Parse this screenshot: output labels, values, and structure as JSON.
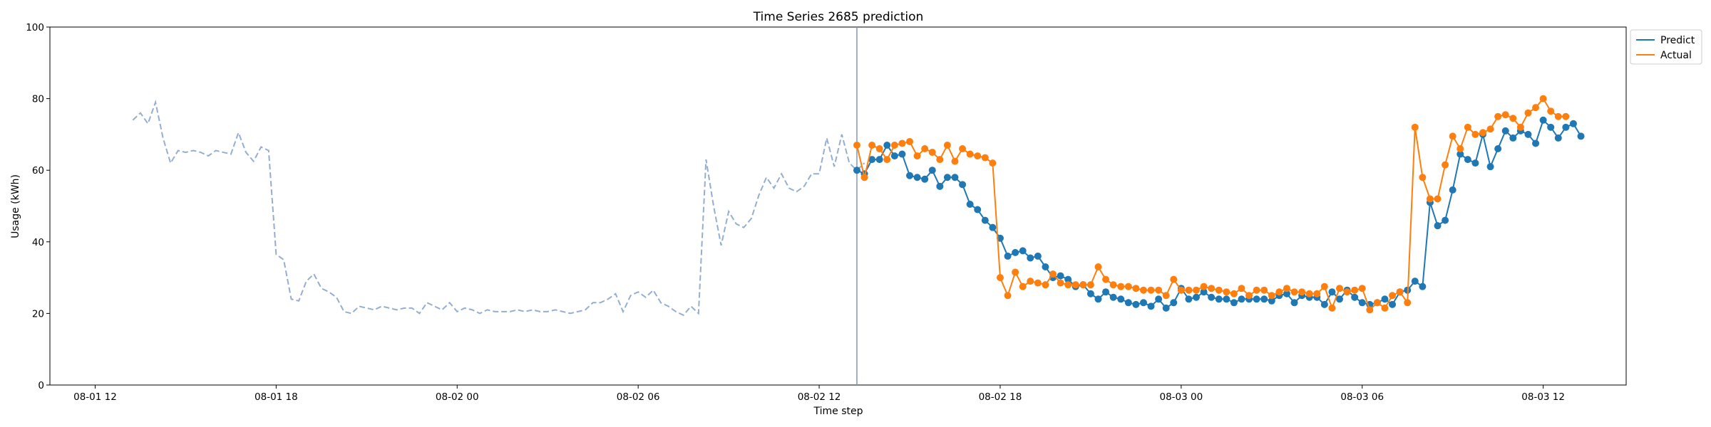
{
  "chart_data": {
    "type": "line",
    "title": "Time Series 2685 prediction",
    "xlabel": "Time step",
    "ylabel": "Usage (kWh)",
    "ylim": [
      0,
      100
    ],
    "y_ticks": [
      0,
      20,
      40,
      60,
      80,
      100
    ],
    "x_axis": {
      "unit": "hour",
      "start_hour": 9,
      "range": [
        "2023-08-01 10:30",
        "2023-08-03 14:45"
      ],
      "ticks": [
        {
          "label": "08-01 12",
          "value": "2023-08-01 12:00"
        },
        {
          "label": "08-01 18",
          "value": "2023-08-01 18:00"
        },
        {
          "label": "08-02 00",
          "value": "2023-08-02 00:00"
        },
        {
          "label": "08-02 06",
          "value": "2023-08-02 06:00"
        },
        {
          "label": "08-02 12",
          "value": "2023-08-02 12:00"
        },
        {
          "label": "08-02 18",
          "value": "2023-08-02 18:00"
        },
        {
          "label": "08-03 00",
          "value": "2023-08-03 00:00"
        },
        {
          "label": "08-03 06",
          "value": "2023-08-03 06:00"
        },
        {
          "label": "08-03 12",
          "value": "2023-08-03 12:00"
        }
      ]
    },
    "forecast_start": "2023-08-02 13:15",
    "step_minutes": 15,
    "grid": false,
    "legend_position": "top-right (outside plot)",
    "history": {
      "start": "2023-08-01 13:15",
      "style": "dashed",
      "color": "#95aed0",
      "values": [
        74,
        76,
        73,
        79,
        69,
        62,
        65.5,
        65,
        65.5,
        65,
        64,
        65.5,
        65,
        64.5,
        70.5,
        65,
        62.5,
        66.5,
        65.5,
        36.5,
        35,
        24,
        23.5,
        29,
        31,
        27,
        26,
        24.5,
        20.5,
        20,
        22,
        21.5,
        21,
        22,
        21.5,
        21,
        21.5,
        21.5,
        20,
        23,
        22,
        21,
        23,
        20.5,
        21.5,
        21,
        20,
        21,
        20.5,
        20.5,
        20.5,
        21,
        20.5,
        21,
        20.5,
        20.5,
        21,
        20.5,
        20,
        20.5,
        21,
        23,
        23,
        24,
        25.5,
        20.5,
        25,
        26,
        24.5,
        26.5,
        23,
        22,
        20.5,
        19.5,
        22,
        20,
        63,
        50,
        39,
        48.5,
        45,
        44,
        46.5,
        53,
        58,
        55,
        59,
        55,
        54,
        55.5,
        59,
        59,
        69,
        61,
        70,
        62,
        60,
        62
      ]
    },
    "series": [
      {
        "name": "Predict",
        "color": "#1f77b4",
        "start": "2023-08-02 13:15",
        "values": [
          60,
          59,
          63,
          63,
          67,
          64,
          64.5,
          58.5,
          58,
          57.5,
          60,
          55.5,
          58,
          58,
          56,
          50.5,
          49,
          46,
          44,
          41,
          36,
          37,
          37.5,
          35.5,
          36,
          33,
          30,
          30.5,
          29.5,
          27.5,
          28,
          25.5,
          24,
          26,
          24.5,
          24,
          23,
          22.5,
          23,
          22,
          24,
          21.5,
          23,
          27,
          24,
          24.5,
          26,
          24.5,
          24,
          24,
          23,
          24,
          24,
          24,
          24,
          23.5,
          25,
          25.5,
          23,
          25,
          24.5,
          24.5,
          22.5,
          26,
          24,
          26.5,
          24.5,
          23,
          22.5,
          23,
          24,
          22.5,
          26,
          26.5,
          29,
          27.5,
          51,
          44.5,
          46,
          54.5,
          64.5,
          63,
          62,
          70,
          61,
          66,
          71,
          69,
          71,
          70,
          67.5,
          74,
          72,
          69,
          72,
          73,
          69.5
        ]
      },
      {
        "name": "Actual",
        "color": "#ff7f0e",
        "start": "2023-08-02 13:15",
        "values": [
          67,
          58,
          67,
          66,
          63,
          67,
          67.5,
          68,
          64,
          66,
          65,
          63,
          67,
          62.5,
          66,
          64.5,
          64,
          63.5,
          62,
          30,
          25,
          31.5,
          27.5,
          29,
          28.5,
          28,
          31,
          28.5,
          28,
          28,
          28,
          28,
          33,
          29.5,
          28,
          27.5,
          27.5,
          27,
          26.5,
          26.5,
          26.5,
          25,
          29.5,
          26.5,
          26.5,
          26.5,
          27.5,
          27,
          26.5,
          26,
          25.5,
          27,
          25,
          26.5,
          26.5,
          25,
          26,
          27,
          26,
          26,
          25.5,
          25.5,
          27.5,
          21.5,
          27,
          26,
          26.5,
          27,
          21,
          23,
          21.5,
          25,
          26,
          23,
          72,
          58,
          52,
          52,
          61.5,
          69.5,
          66,
          72,
          70,
          70.5,
          71.5,
          75,
          75.5,
          74.5,
          72,
          76,
          77.5,
          80,
          76.5,
          75,
          75
        ]
      }
    ]
  }
}
